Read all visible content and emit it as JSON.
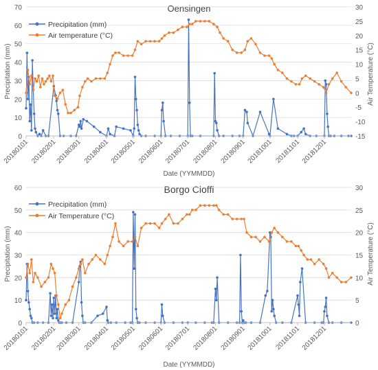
{
  "chart_data": [
    {
      "type": "line",
      "title": "Oensingen",
      "xlabel": "Date (YYMMDD)",
      "ylabel_left": "Precipitation (mm)",
      "ylabel_right": "Air Temperature (°C)",
      "ylim_left": [
        0,
        70
      ],
      "yticks_left": [
        0,
        10,
        20,
        30,
        40,
        50,
        60,
        70
      ],
      "ylim_right": [
        -15,
        30
      ],
      "yticks_right": [
        -15,
        -10,
        -5,
        0,
        5,
        10,
        15,
        20,
        25,
        30
      ],
      "xlim": [
        "2018-01-01",
        "2018-12-31"
      ],
      "xticks": [
        "20180101",
        "20180201",
        "20180301",
        "20180401",
        "20180501",
        "20180601",
        "20180701",
        "20180801",
        "20180901",
        "20181001",
        "20181101",
        "20181201"
      ],
      "legend_position": "top-left",
      "grid": "horizontal",
      "series": [
        {
          "name": "Precipitation (mm)",
          "axis": "left",
          "color": "#4472C4",
          "x": [
            "2018-01-01",
            "2018-01-02",
            "2018-01-03",
            "2018-01-04",
            "2018-01-05",
            "2018-01-06",
            "2018-01-07",
            "2018-01-08",
            "2018-01-09",
            "2018-01-10",
            "2018-01-11",
            "2018-01-12",
            "2018-01-14",
            "2018-01-16",
            "2018-01-18",
            "2018-01-20",
            "2018-01-23",
            "2018-01-26",
            "2018-02-01",
            "2018-02-03",
            "2018-02-04",
            "2018-02-05",
            "2018-02-06",
            "2018-02-08",
            "2018-02-12",
            "2018-02-20",
            "2018-02-26",
            "2018-03-01",
            "2018-03-02",
            "2018-03-03",
            "2018-03-04",
            "2018-03-06",
            "2018-03-10",
            "2018-03-18",
            "2018-03-25",
            "2018-04-01",
            "2018-04-03",
            "2018-04-05",
            "2018-04-10",
            "2018-04-12",
            "2018-04-20",
            "2018-04-28",
            "2018-05-01",
            "2018-05-02",
            "2018-05-03",
            "2018-05-04",
            "2018-05-05",
            "2018-05-06",
            "2018-05-07",
            "2018-05-08",
            "2018-05-10",
            "2018-05-15",
            "2018-05-25",
            "2018-06-01",
            "2018-06-02",
            "2018-06-03",
            "2018-06-04",
            "2018-06-06",
            "2018-06-12",
            "2018-06-22",
            "2018-07-01",
            "2018-07-02",
            "2018-07-03",
            "2018-07-04",
            "2018-07-06",
            "2018-07-15",
            "2018-07-30",
            "2018-07-31",
            "2018-08-01",
            "2018-08-02",
            "2018-08-03",
            "2018-08-05",
            "2018-08-10",
            "2018-08-20",
            "2018-08-28",
            "2018-09-01",
            "2018-09-03",
            "2018-09-05",
            "2018-09-06",
            "2018-09-12",
            "2018-09-20",
            "2018-09-30",
            "2018-10-01",
            "2018-10-05",
            "2018-10-10",
            "2018-10-20",
            "2018-10-25",
            "2018-10-28",
            "2018-11-01",
            "2018-11-05",
            "2018-11-08",
            "2018-11-10",
            "2018-11-15",
            "2018-11-22",
            "2018-12-01",
            "2018-12-02",
            "2018-12-03",
            "2018-12-04",
            "2018-12-05",
            "2018-12-06",
            "2018-12-08",
            "2018-12-12",
            "2018-12-20",
            "2018-12-28",
            "2018-12-31"
          ],
          "y": [
            15,
            45,
            20,
            32,
            8,
            17,
            3,
            41,
            25,
            12,
            4,
            2,
            0,
            1,
            0,
            3,
            0,
            0,
            27,
            22,
            19,
            14,
            12,
            0,
            0,
            0,
            0,
            6,
            5,
            8,
            4,
            9,
            8,
            5,
            2,
            0,
            4,
            1,
            0,
            5,
            4,
            3,
            0,
            4,
            32,
            20,
            14,
            6,
            3,
            1,
            0,
            0,
            0,
            0,
            14,
            18,
            8,
            0,
            0,
            0,
            0,
            63,
            18,
            0,
            0,
            0,
            0,
            34,
            8,
            7,
            3,
            0,
            0,
            0,
            0,
            0,
            14,
            13,
            7,
            0,
            13,
            1,
            0,
            20,
            4,
            1,
            0,
            0,
            0,
            2,
            4,
            1,
            0,
            0,
            0,
            30,
            28,
            12,
            5,
            0,
            0,
            0,
            0,
            0,
            0
          ]
        },
        {
          "name": "Air temperature (°C)",
          "axis": "right",
          "color": "#ED7D31",
          "x": [
            "2018-01-01",
            "2018-01-03",
            "2018-01-05",
            "2018-01-07",
            "2018-01-09",
            "2018-01-11",
            "2018-01-13",
            "2018-01-15",
            "2018-01-17",
            "2018-01-19",
            "2018-01-21",
            "2018-01-23",
            "2018-01-25",
            "2018-01-27",
            "2018-01-29",
            "2018-01-31",
            "2018-02-02",
            "2018-02-05",
            "2018-02-08",
            "2018-02-11",
            "2018-02-14",
            "2018-02-17",
            "2018-02-20",
            "2018-02-24",
            "2018-02-28",
            "2018-03-02",
            "2018-03-05",
            "2018-03-08",
            "2018-03-11",
            "2018-03-15",
            "2018-03-20",
            "2018-03-25",
            "2018-03-30",
            "2018-04-02",
            "2018-04-05",
            "2018-04-08",
            "2018-04-11",
            "2018-04-15",
            "2018-04-20",
            "2018-04-25",
            "2018-04-30",
            "2018-05-03",
            "2018-05-06",
            "2018-05-10",
            "2018-05-15",
            "2018-05-20",
            "2018-05-25",
            "2018-05-30",
            "2018-06-02",
            "2018-06-05",
            "2018-06-10",
            "2018-06-15",
            "2018-06-20",
            "2018-06-25",
            "2018-06-30",
            "2018-07-03",
            "2018-07-06",
            "2018-07-10",
            "2018-07-15",
            "2018-07-20",
            "2018-07-25",
            "2018-07-30",
            "2018-08-03",
            "2018-08-06",
            "2018-08-10",
            "2018-08-15",
            "2018-08-20",
            "2018-08-25",
            "2018-08-30",
            "2018-09-03",
            "2018-09-06",
            "2018-09-10",
            "2018-09-15",
            "2018-09-20",
            "2018-09-25",
            "2018-09-30",
            "2018-10-03",
            "2018-10-06",
            "2018-10-10",
            "2018-10-15",
            "2018-10-20",
            "2018-10-25",
            "2018-10-30",
            "2018-11-03",
            "2018-11-06",
            "2018-11-10",
            "2018-11-15",
            "2018-11-20",
            "2018-11-25",
            "2018-11-30",
            "2018-12-03",
            "2018-12-06",
            "2018-12-10",
            "2018-12-15",
            "2018-12-20",
            "2018-12-25",
            "2018-12-31"
          ],
          "y": [
            0,
            8,
            3,
            6,
            1,
            5,
            4,
            6,
            2,
            5,
            3,
            4,
            5,
            6,
            4,
            6,
            -1,
            -2,
            0,
            1,
            -4,
            -7,
            -7,
            -6,
            -5,
            -1,
            2,
            4,
            5,
            4,
            5,
            5,
            5,
            7,
            10,
            13,
            14,
            14,
            13,
            13,
            13,
            15,
            18,
            17,
            18,
            18,
            18,
            18,
            19,
            20,
            21,
            21,
            22,
            23,
            23,
            24,
            24,
            25,
            25,
            25,
            25,
            24,
            23,
            21,
            19,
            18,
            15,
            14,
            14,
            15,
            18,
            19,
            17,
            14,
            13,
            13,
            12,
            10,
            8,
            7,
            5,
            4,
            3,
            3,
            5,
            6,
            5,
            4,
            3,
            2,
            0,
            3,
            5,
            7,
            4,
            2,
            0
          ]
        }
      ]
    },
    {
      "type": "line",
      "title": "Borgo Cioffi",
      "xlabel": "Date (YYMMDD)",
      "ylabel_left": "Precipitation (mm)",
      "ylabel_right": "Air Temperature (°C)",
      "ylim_left": [
        0,
        60
      ],
      "yticks_left": [
        0,
        10,
        20,
        30,
        40,
        50,
        60
      ],
      "ylim_right": [
        0,
        30
      ],
      "yticks_right": [
        0,
        5,
        10,
        15,
        20,
        25,
        30
      ],
      "xlim": [
        "2018-01-01",
        "2018-12-31"
      ],
      "xticks": [
        "20180101",
        "20180201",
        "20180301",
        "20180401",
        "20180501",
        "20180601",
        "20180701",
        "20180801",
        "20180901",
        "20181001",
        "20181101",
        "20181201"
      ],
      "legend_position": "top-left",
      "grid": "horizontal",
      "series": [
        {
          "name": "Precipitation (mm)",
          "axis": "left",
          "color": "#4472C4",
          "x": [
            "2018-01-01",
            "2018-01-02",
            "2018-01-03",
            "2018-01-04",
            "2018-01-05",
            "2018-01-06",
            "2018-01-07",
            "2018-01-08",
            "2018-01-10",
            "2018-01-14",
            "2018-01-20",
            "2018-01-26",
            "2018-01-28",
            "2018-01-29",
            "2018-01-30",
            "2018-01-31",
            "2018-02-01",
            "2018-02-02",
            "2018-02-03",
            "2018-02-04",
            "2018-02-05",
            "2018-02-06",
            "2018-02-07",
            "2018-02-08",
            "2018-02-10",
            "2018-02-15",
            "2018-02-22",
            "2018-03-01",
            "2018-03-02",
            "2018-03-03",
            "2018-03-04",
            "2018-03-05",
            "2018-03-06",
            "2018-03-08",
            "2018-03-15",
            "2018-03-22",
            "2018-03-28",
            "2018-04-01",
            "2018-04-02",
            "2018-04-03",
            "2018-04-06",
            "2018-04-12",
            "2018-04-22",
            "2018-04-28",
            "2018-04-30",
            "2018-05-01",
            "2018-05-02",
            "2018-05-03",
            "2018-05-04",
            "2018-05-05",
            "2018-05-06",
            "2018-05-08",
            "2018-05-15",
            "2018-05-25",
            "2018-06-01",
            "2018-06-02",
            "2018-06-03",
            "2018-06-05",
            "2018-06-15",
            "2018-06-25",
            "2018-07-01",
            "2018-07-10",
            "2018-07-20",
            "2018-07-28",
            "2018-07-30",
            "2018-08-01",
            "2018-08-02",
            "2018-08-03",
            "2018-08-05",
            "2018-08-15",
            "2018-08-25",
            "2018-08-28",
            "2018-08-29",
            "2018-08-30",
            "2018-08-31",
            "2018-09-01",
            "2018-09-02",
            "2018-09-04",
            "2018-09-10",
            "2018-09-20",
            "2018-09-26",
            "2018-09-28",
            "2018-10-01",
            "2018-10-02",
            "2018-10-03",
            "2018-10-04",
            "2018-10-05",
            "2018-10-06",
            "2018-10-08",
            "2018-10-15",
            "2018-10-25",
            "2018-11-01",
            "2018-11-02",
            "2018-11-03",
            "2018-11-04",
            "2018-11-06",
            "2018-11-10",
            "2018-11-20",
            "2018-11-28",
            "2018-11-30",
            "2018-12-01",
            "2018-12-02",
            "2018-12-03",
            "2018-12-04",
            "2018-12-06",
            "2018-12-10",
            "2018-12-20",
            "2018-12-31"
          ],
          "y": [
            10,
            26,
            14,
            9,
            6,
            3,
            2,
            0,
            0,
            0,
            0,
            0,
            13,
            3,
            8,
            2,
            11,
            4,
            12,
            2,
            6,
            1,
            0,
            0,
            0,
            0,
            0,
            18,
            25,
            27,
            9,
            3,
            0,
            0,
            0,
            3,
            4,
            7,
            1,
            0,
            0,
            0,
            0,
            0,
            0,
            49,
            24,
            48,
            6,
            2,
            0,
            0,
            0,
            0,
            0,
            8,
            3,
            0,
            0,
            0,
            0,
            0,
            0,
            0,
            0,
            15,
            10,
            20,
            0,
            0,
            0,
            0,
            30,
            5,
            0,
            1,
            0,
            0,
            0,
            0,
            12,
            14,
            40,
            38,
            5,
            10,
            6,
            3,
            0,
            0,
            0,
            12,
            8,
            3,
            18,
            24,
            0,
            0,
            0,
            0,
            5,
            7,
            11,
            3,
            0,
            0,
            0,
            0
          ]
        },
        {
          "name": "Air Temperature (°C)",
          "axis": "right",
          "color": "#ED7D31",
          "x": [
            "2018-01-01",
            "2018-01-03",
            "2018-01-05",
            "2018-01-07",
            "2018-01-09",
            "2018-01-11",
            "2018-01-14",
            "2018-01-18",
            "2018-01-22",
            "2018-01-26",
            "2018-01-29",
            "2018-01-31",
            "2018-02-02",
            "2018-02-04",
            "2018-02-06",
            "2018-02-08",
            "2018-02-10",
            "2018-02-14",
            "2018-02-18",
            "2018-02-22",
            "2018-02-26",
            "2018-03-01",
            "2018-03-03",
            "2018-03-05",
            "2018-03-08",
            "2018-03-12",
            "2018-03-16",
            "2018-03-20",
            "2018-03-25",
            "2018-03-30",
            "2018-04-02",
            "2018-04-05",
            "2018-04-08",
            "2018-04-11",
            "2018-04-15",
            "2018-04-20",
            "2018-04-25",
            "2018-04-30",
            "2018-05-03",
            "2018-05-06",
            "2018-05-10",
            "2018-05-15",
            "2018-05-20",
            "2018-05-25",
            "2018-05-30",
            "2018-06-02",
            "2018-06-06",
            "2018-06-10",
            "2018-06-15",
            "2018-06-20",
            "2018-06-25",
            "2018-06-30",
            "2018-07-03",
            "2018-07-06",
            "2018-07-10",
            "2018-07-15",
            "2018-07-20",
            "2018-07-25",
            "2018-07-30",
            "2018-08-02",
            "2018-08-05",
            "2018-08-10",
            "2018-08-15",
            "2018-08-20",
            "2018-08-25",
            "2018-08-30",
            "2018-09-02",
            "2018-09-05",
            "2018-09-10",
            "2018-09-15",
            "2018-09-20",
            "2018-09-25",
            "2018-09-30",
            "2018-10-03",
            "2018-10-06",
            "2018-10-10",
            "2018-10-15",
            "2018-10-20",
            "2018-10-25",
            "2018-10-30",
            "2018-11-02",
            "2018-11-05",
            "2018-11-08",
            "2018-11-12",
            "2018-11-16",
            "2018-11-20",
            "2018-11-25",
            "2018-11-30",
            "2018-12-03",
            "2018-12-06",
            "2018-12-10",
            "2018-12-15",
            "2018-12-20",
            "2018-12-25",
            "2018-12-31"
          ],
          "y": [
            10,
            13,
            11,
            14,
            9,
            11,
            10,
            8,
            9,
            10,
            13,
            12,
            11,
            6,
            4,
            1,
            2,
            4,
            5,
            8,
            10,
            12,
            13,
            14,
            11,
            13,
            14,
            15,
            14,
            13,
            15,
            17,
            19,
            22,
            18,
            17,
            18,
            18,
            19,
            17,
            21,
            22,
            22,
            22,
            21,
            22,
            23,
            24,
            22,
            22,
            23,
            24,
            24,
            25,
            25,
            26,
            26,
            26,
            26,
            26,
            25,
            24,
            24,
            23,
            23,
            23,
            23,
            20,
            19,
            19,
            18,
            19,
            18,
            20,
            21,
            20,
            19,
            18,
            18,
            17,
            17,
            16,
            15,
            14,
            14,
            13,
            14,
            13,
            12,
            10,
            11,
            10,
            9,
            9,
            10
          ]
        }
      ]
    }
  ]
}
